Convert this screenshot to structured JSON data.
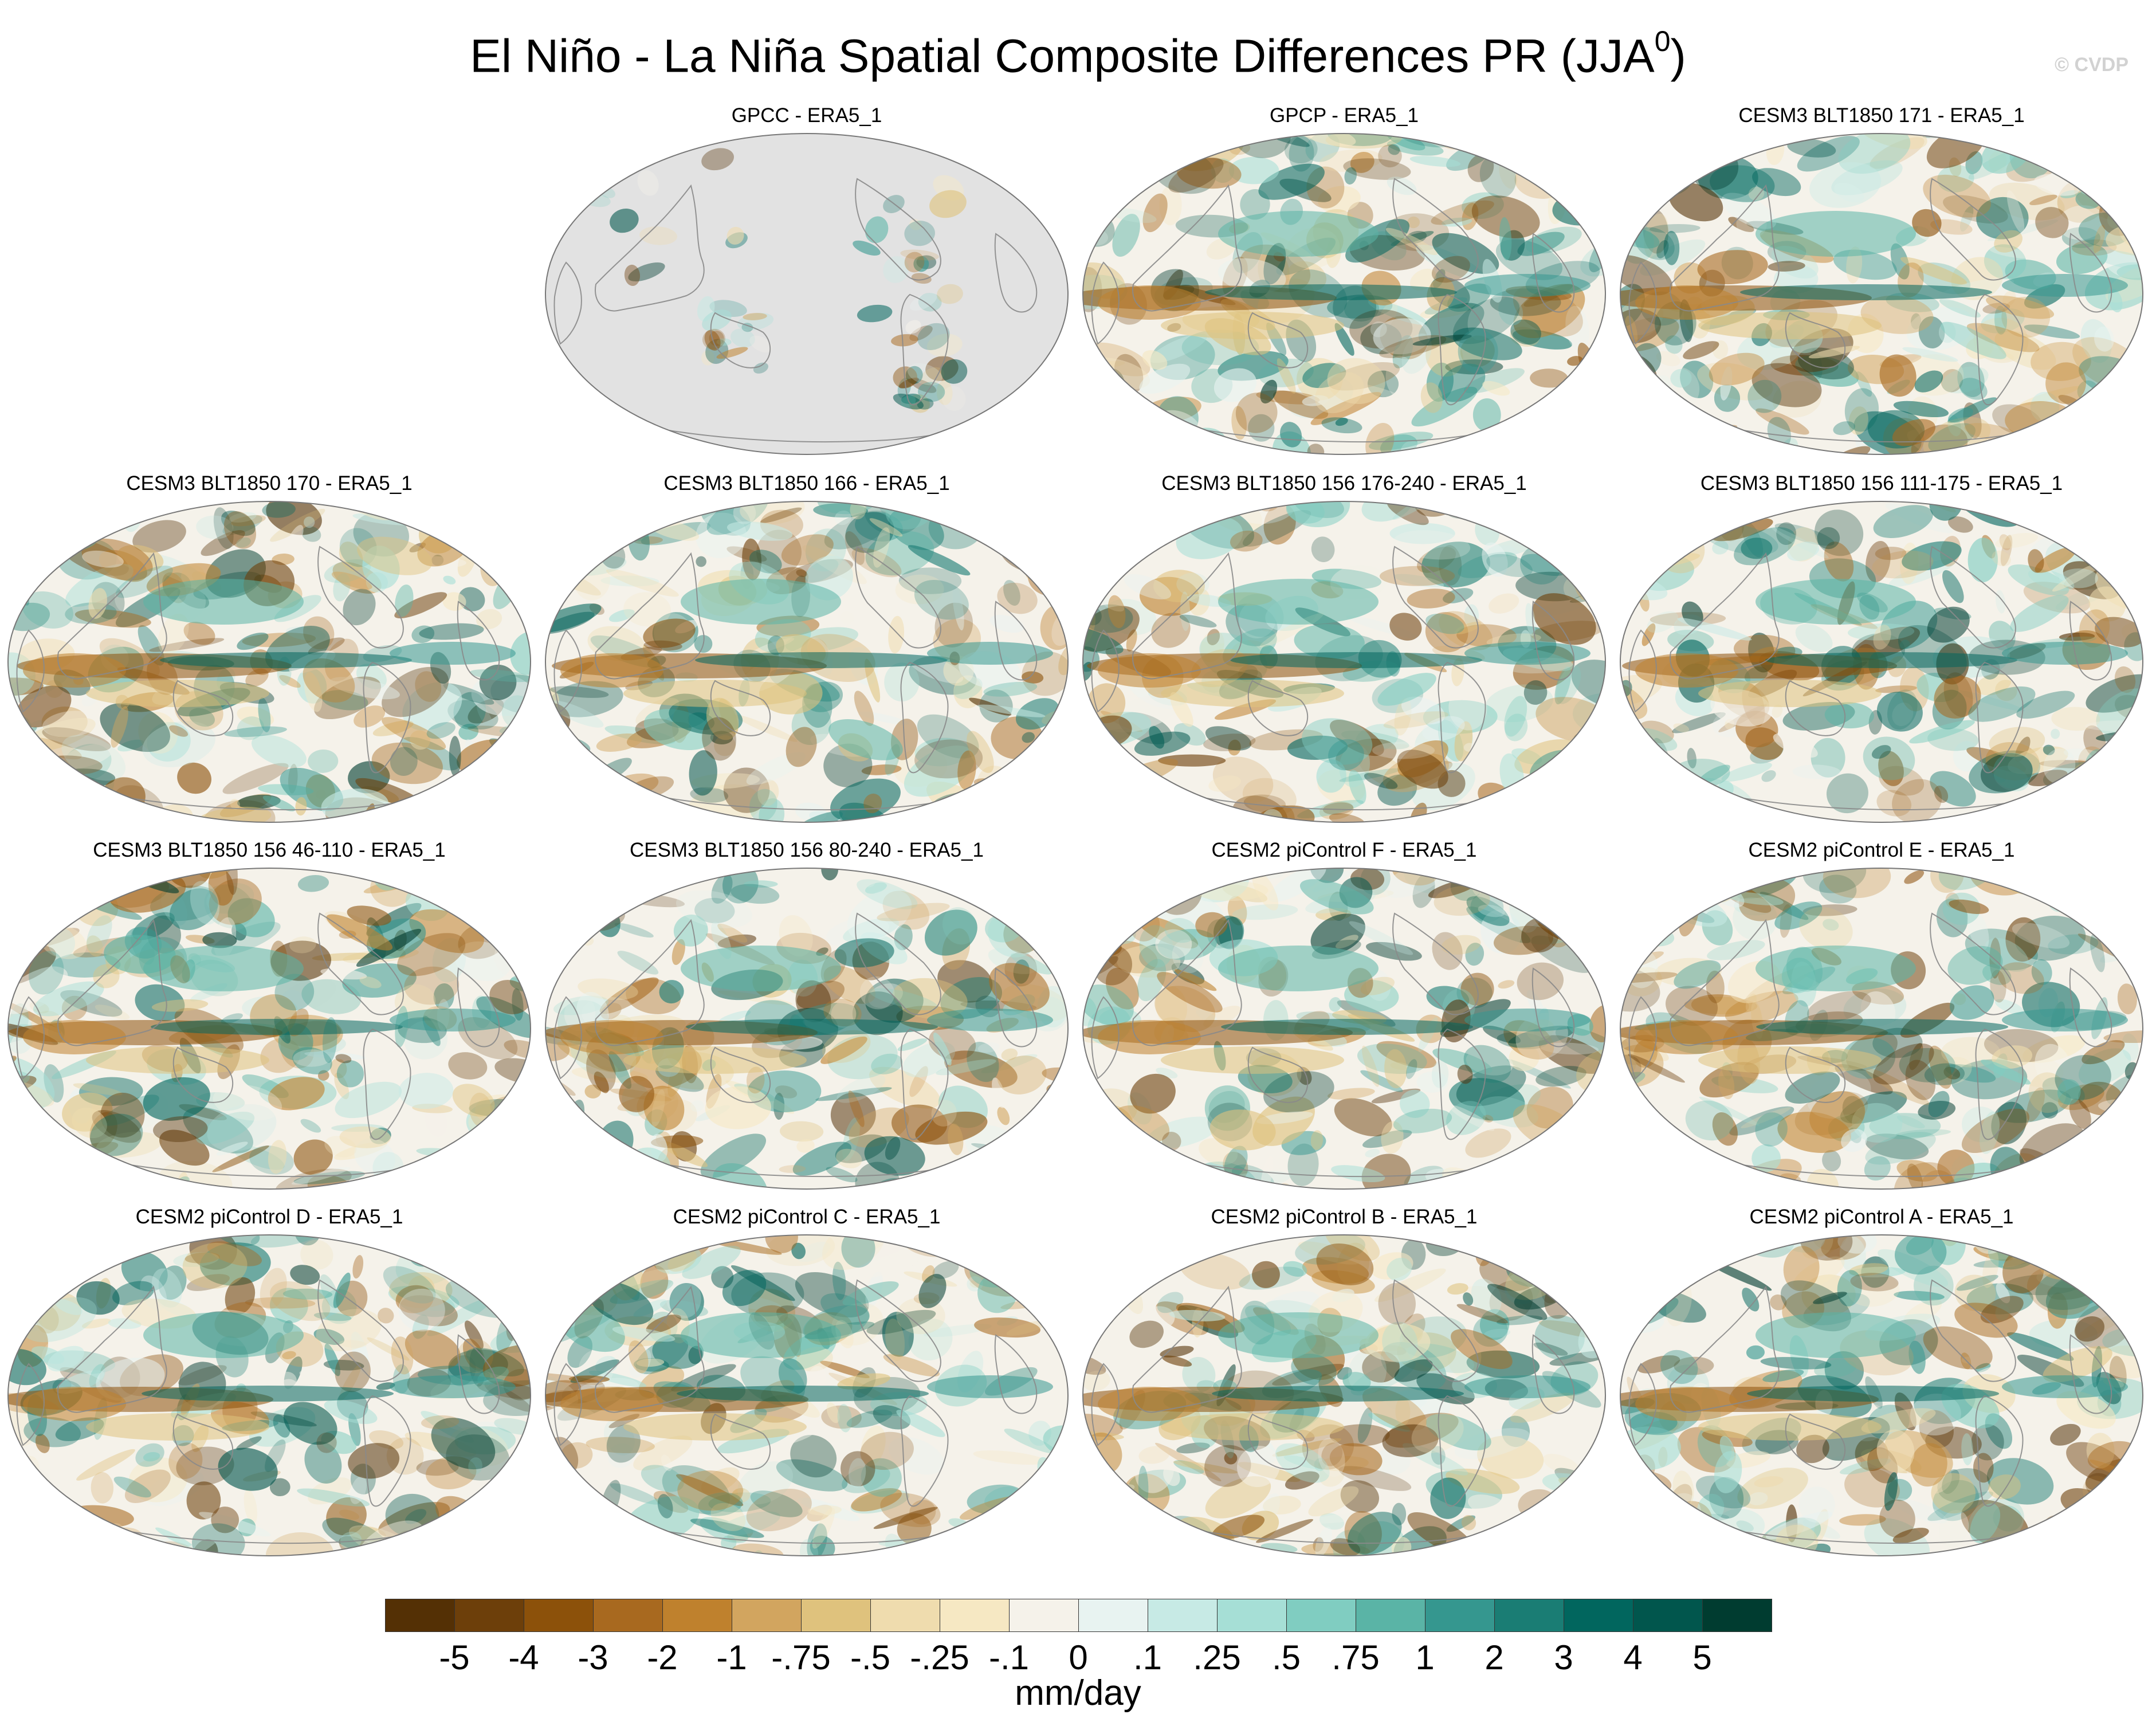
{
  "title": "El Niño - La Niña Spatial Composite Differences PR (JJA",
  "title_superscript": "0",
  "title_close": ")",
  "watermark": "© CVDP",
  "panels": [
    {
      "label": "GPCC - ERA5_1",
      "ocean_masked": true
    },
    {
      "label": "GPCP - ERA5_1",
      "ocean_masked": false
    },
    {
      "label": "CESM3 BLT1850 171 - ERA5_1",
      "ocean_masked": false
    },
    {
      "label": "CESM3 BLT1850 170 - ERA5_1",
      "ocean_masked": false
    },
    {
      "label": "CESM3 BLT1850 166 - ERA5_1",
      "ocean_masked": false
    },
    {
      "label": "CESM3 BLT1850 156 176-240 - ERA5_1",
      "ocean_masked": false
    },
    {
      "label": "CESM3 BLT1850 156 111-175 - ERA5_1",
      "ocean_masked": false
    },
    {
      "label": "CESM3 BLT1850 156 46-110 - ERA5_1",
      "ocean_masked": false
    },
    {
      "label": "CESM3 BLT1850 156 80-240 - ERA5_1",
      "ocean_masked": false
    },
    {
      "label": "CESM2 piControl F - ERA5_1",
      "ocean_masked": false
    },
    {
      "label": "CESM2 piControl E - ERA5_1",
      "ocean_masked": false
    },
    {
      "label": "CESM2 piControl D - ERA5_1",
      "ocean_masked": false
    },
    {
      "label": "CESM2 piControl C - ERA5_1",
      "ocean_masked": false
    },
    {
      "label": "CESM2 piControl B - ERA5_1",
      "ocean_masked": false
    },
    {
      "label": "CESM2 piControl A - ERA5_1",
      "ocean_masked": false
    }
  ],
  "colorbar": {
    "labels": [
      "-5",
      "-4",
      "-3",
      "-2",
      "-1",
      "-.75",
      "-.5",
      "-.25",
      "-.1",
      "0",
      ".1",
      ".25",
      ".5",
      ".75",
      "1",
      "2",
      "3",
      "4",
      "5"
    ],
    "colors": [
      "#543005",
      "#6d3f0a",
      "#8c510a",
      "#a8691f",
      "#bf812d",
      "#d2a55f",
      "#dfc27d",
      "#efdcae",
      "#f6e8c3",
      "#f5f2ea",
      "#e8f3f1",
      "#c7eae5",
      "#a6dfd6",
      "#80cdc1",
      "#5ab4a6",
      "#35978f",
      "#1a7d74",
      "#01665e",
      "#01564d",
      "#003c30"
    ],
    "units": "mm/day"
  },
  "colors": {
    "land_mask": "#e2e2e2",
    "coast": "#8a8a8a",
    "neutral": "#f5f2ea"
  }
}
